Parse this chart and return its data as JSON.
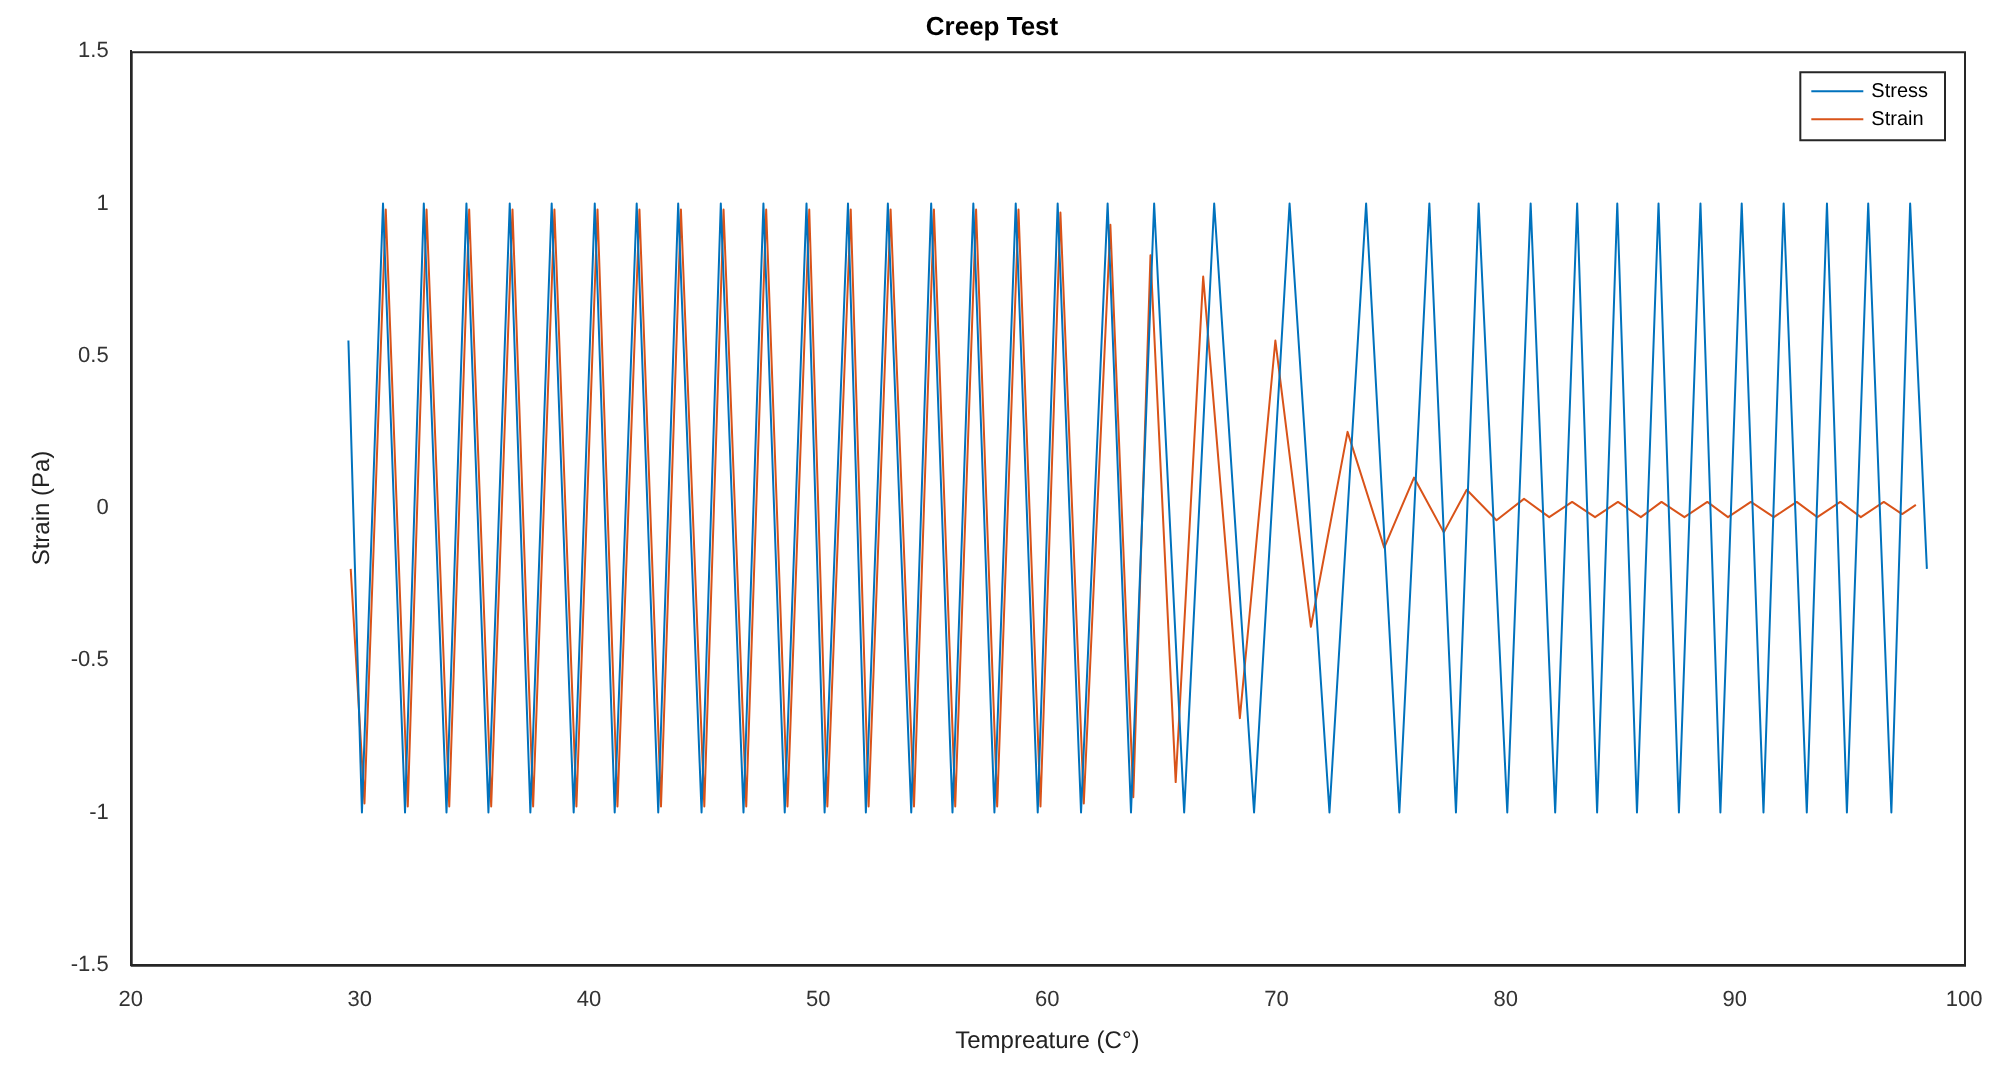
{
  "chart_data": {
    "type": "line",
    "title": "Creep Test",
    "xlabel": "Tempreature (C°)",
    "ylabel": "Strain (Pa)",
    "xlim": [
      20,
      100
    ],
    "xticks": [
      20,
      30,
      40,
      50,
      60,
      70,
      80,
      90,
      100
    ],
    "ylim": [
      -1.5,
      1.5
    ],
    "yticks": [
      -1.5,
      -1,
      -0.5,
      0,
      0.5,
      1,
      1.5
    ],
    "grid": false,
    "legend": "top right",
    "marker": "none",
    "line_style": "solid",
    "series": [
      {
        "name": "Stress",
        "color": "#0072bd",
        "x": [
          29.5,
          30.09,
          31.01,
          31.97,
          32.79,
          33.78,
          34.65,
          35.61,
          36.54,
          37.44,
          38.37,
          39.33,
          40.25,
          41.12,
          42.08,
          43.02,
          43.89,
          44.91,
          45.75,
          46.74,
          47.61,
          48.54,
          49.49,
          50.28,
          51.3,
          52.08,
          53.04,
          54.06,
          54.93,
          55.86,
          56.77,
          57.69,
          58.62,
          59.58,
          60.45,
          61.47,
          62.63,
          63.65,
          64.66,
          65.97,
          67.28,
          69.02,
          70.57,
          72.31,
          73.91,
          75.36,
          76.67,
          77.83,
          78.82,
          80.07,
          81.09,
          82.16,
          83.12,
          83.99,
          84.87,
          85.73,
          86.67,
          87.56,
          88.5,
          89.37,
          90.3,
          91.25,
          92.13,
          93.14,
          94.02,
          94.89,
          95.82,
          96.83,
          97.65,
          98.38
        ],
        "values": [
          0.55,
          -1,
          1,
          -1,
          1,
          -1,
          1,
          -1,
          1,
          -1,
          1,
          -1,
          1,
          -1,
          1,
          -1,
          1,
          -1,
          1,
          -1,
          1,
          -1,
          1,
          -1,
          1,
          -1,
          1,
          -1,
          1,
          -1,
          1,
          -1,
          1,
          -1,
          1,
          -1,
          1,
          -1,
          1,
          -1,
          1,
          -1,
          1,
          -1,
          1,
          -1,
          1,
          -1,
          1,
          -1,
          1,
          -1,
          1,
          -1,
          1,
          -1,
          1,
          -1,
          1,
          -1,
          1,
          -1,
          1,
          -1,
          1,
          -1,
          1,
          -1,
          1,
          -0.2
        ]
      },
      {
        "name": "Strain",
        "color": "#d95319",
        "x": [
          29.6,
          30.2,
          31.13,
          32.09,
          32.91,
          33.9,
          34.77,
          35.73,
          36.66,
          37.56,
          38.49,
          39.45,
          40.37,
          41.24,
          42.2,
          43.14,
          44.01,
          45.03,
          45.87,
          46.86,
          47.73,
          48.66,
          49.61,
          50.4,
          51.42,
          52.2,
          53.16,
          54.18,
          55.05,
          55.98,
          56.89,
          57.81,
          58.74,
          59.7,
          60.57,
          61.59,
          62.75,
          63.75,
          64.5,
          65.6,
          66.8,
          68.4,
          69.95,
          71.5,
          73.1,
          74.7,
          76.0,
          77.3,
          78.3,
          79.6,
          80.8,
          81.9,
          82.9,
          83.9,
          84.9,
          85.9,
          86.8,
          87.8,
          88.8,
          89.7,
          90.7,
          91.7,
          92.7,
          93.6,
          94.6,
          95.5,
          96.5,
          97.3,
          97.9
        ],
        "values": [
          -0.2,
          -0.97,
          0.98,
          -0.98,
          0.98,
          -0.98,
          0.98,
          -0.98,
          0.98,
          -0.98,
          0.98,
          -0.98,
          0.98,
          -0.98,
          0.98,
          -0.98,
          0.98,
          -0.98,
          0.98,
          -0.98,
          0.98,
          -0.98,
          0.98,
          -0.98,
          0.98,
          -0.98,
          0.98,
          -0.98,
          0.98,
          -0.98,
          0.98,
          -0.98,
          0.98,
          -0.98,
          0.97,
          -0.97,
          0.93,
          -0.95,
          0.83,
          -0.9,
          0.76,
          -0.69,
          0.55,
          -0.39,
          0.25,
          -0.13,
          0.1,
          -0.08,
          0.06,
          -0.04,
          0.03,
          -0.03,
          0.02,
          -0.03,
          0.02,
          -0.03,
          0.02,
          -0.03,
          0.02,
          -0.03,
          0.02,
          -0.03,
          0.02,
          -0.03,
          0.02,
          -0.03,
          0.02,
          -0.02,
          0.01
        ]
      }
    ]
  }
}
